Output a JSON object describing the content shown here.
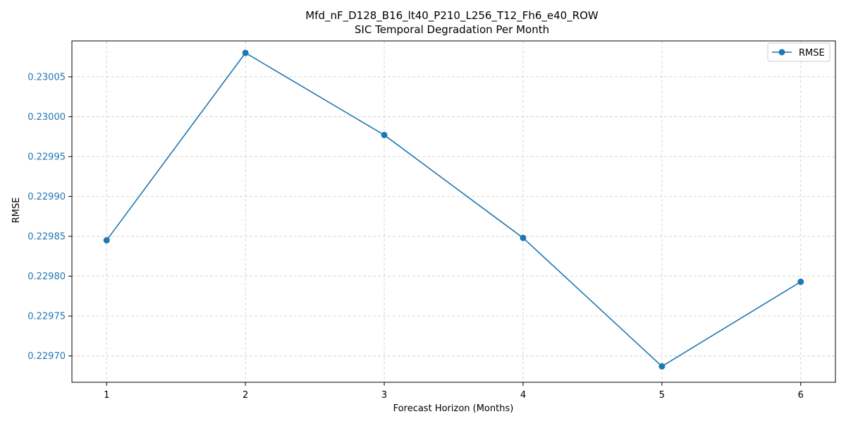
{
  "chart_data": {
    "type": "line",
    "title": "Mfd_nF_D128_B16_lt40_P210_L256_T12_Fh6_e40_ROW",
    "subtitle": "SIC Temporal Degradation Per Month",
    "xlabel": "Forecast Horizon (Months)",
    "ylabel": "RMSE",
    "x": [
      1,
      2,
      3,
      4,
      5,
      6
    ],
    "x_ticks": [
      "1",
      "2",
      "3",
      "4",
      "5",
      "6"
    ],
    "xlim": [
      0.75,
      6.25
    ],
    "ylim": [
      0.229667,
      0.230095
    ],
    "y_ticks": [
      0.2297,
      0.22975,
      0.2298,
      0.22985,
      0.2299,
      0.22995,
      0.23,
      0.23005
    ],
    "y_tick_labels": [
      "0.22970",
      "0.22975",
      "0.22980",
      "0.22985",
      "0.22990",
      "0.22995",
      "0.23000",
      "0.23005"
    ],
    "grid": true,
    "legend_position": "top-right",
    "series": [
      {
        "name": "RMSE",
        "color": "#1f77b4",
        "marker": "circle",
        "values": [
          0.229845,
          0.23008,
          0.229977,
          0.229848,
          0.229687,
          0.229793
        ]
      }
    ],
    "colors": {
      "y_tick_labels": "#1f77b4",
      "x_tick_labels": "#000000",
      "grid": "#cccccc",
      "axes": "#000000"
    }
  }
}
